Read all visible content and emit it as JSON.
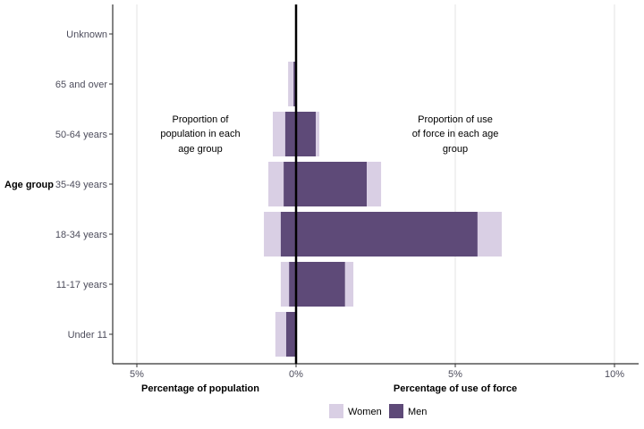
{
  "chart_data": {
    "type": "bar",
    "orientation": "horizontal",
    "stacked": true,
    "categories": [
      "Unknown",
      "65 and over",
      "50-64 years",
      "35-49 years",
      "18-34 years",
      "11-17 years",
      "Under 11"
    ],
    "ylabel": "Age group",
    "xlabel_left": "Percentage of population",
    "xlabel_right": "Percentage of use of force",
    "xticks": [
      -5,
      0,
      5,
      10
    ],
    "xtick_labels": [
      "5%",
      "0%",
      "5%",
      "10%"
    ],
    "xlim": [
      -5.76,
      10.73
    ],
    "grid": "vertical major",
    "legend_position": "bottom",
    "annotations": {
      "left": [
        "Proportion of",
        "population in each",
        "age group"
      ],
      "right": [
        "Proportion of use",
        "of force in each age",
        "group"
      ]
    },
    "series": [
      {
        "name": "Men",
        "color": "#5e4a78",
        "population": [
          0,
          0.08,
          0.34,
          0.39,
          0.48,
          0.22,
          0.31
        ],
        "use_of_force": [
          0,
          0.02,
          0.62,
          2.22,
          5.7,
          1.54,
          0
        ]
      },
      {
        "name": "Women",
        "color": "#d9cfe4",
        "population": [
          0,
          0.17,
          0.39,
          0.48,
          0.53,
          0.26,
          0.34
        ],
        "use_of_force": [
          0,
          0,
          0.11,
          0.45,
          0.76,
          0.26,
          0
        ]
      }
    ]
  }
}
